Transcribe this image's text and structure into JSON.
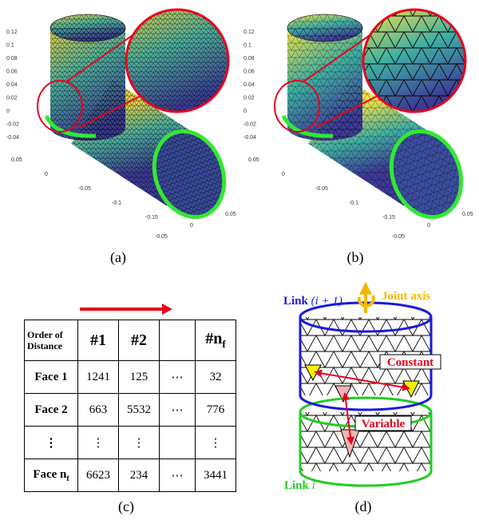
{
  "panels": [
    {
      "caption": "(a)",
      "z_ticks": [
        "0.12",
        "0.1",
        "0.08",
        "0.06",
        "0.04",
        "0.02",
        "0",
        "-0.02",
        "-0.04"
      ],
      "y_ticks": [
        "0.05",
        "0",
        "-0.05",
        "-0.1",
        "-0.15"
      ],
      "x_ticks": [
        "-0.05",
        "0",
        "0.05"
      ]
    },
    {
      "caption": "(b)",
      "z_ticks": [
        "0.12",
        "0.1",
        "0.08",
        "0.06",
        "0.04",
        "0.02",
        "0",
        "-0.02",
        "-0.04"
      ],
      "y_ticks": [
        "0.05",
        "0",
        "-0.05",
        "-0.1",
        "-0.15"
      ],
      "x_ticks": [
        "-0.05",
        "0",
        "0.05"
      ]
    }
  ],
  "table": {
    "caption": "(c)",
    "header": [
      {
        "main": "Order of Distance"
      },
      {
        "main": "#1"
      },
      {
        "main": "#2"
      },
      {
        "main": ""
      },
      {
        "main": "#n",
        "sub": "f"
      }
    ],
    "rows": [
      [
        {
          "main": "Face 1"
        },
        {
          "main": "1241"
        },
        {
          "main": "125"
        },
        {
          "main": "⋯"
        },
        {
          "main": "32"
        }
      ],
      [
        {
          "main": "Face 2"
        },
        {
          "main": "663"
        },
        {
          "main": "5532"
        },
        {
          "main": "⋯"
        },
        {
          "main": "776"
        }
      ],
      [
        {
          "main": "⋮"
        },
        {
          "main": "⋮"
        },
        {
          "main": "⋮"
        },
        {
          "main": ""
        },
        {
          "main": "⋮"
        }
      ],
      [
        {
          "main": "Face n",
          "sub": "f"
        },
        {
          "main": "6623"
        },
        {
          "main": "234"
        },
        {
          "main": "⋯"
        },
        {
          "main": "3441"
        }
      ]
    ]
  },
  "diagram": {
    "caption": "(d)",
    "link_upper": "Link",
    "link_upper_index": "(i + 1)",
    "joint_axis": "Joint axis",
    "constant": "Constant",
    "variable": "Variable",
    "link_lower": "Link",
    "link_lower_index": "i"
  }
}
